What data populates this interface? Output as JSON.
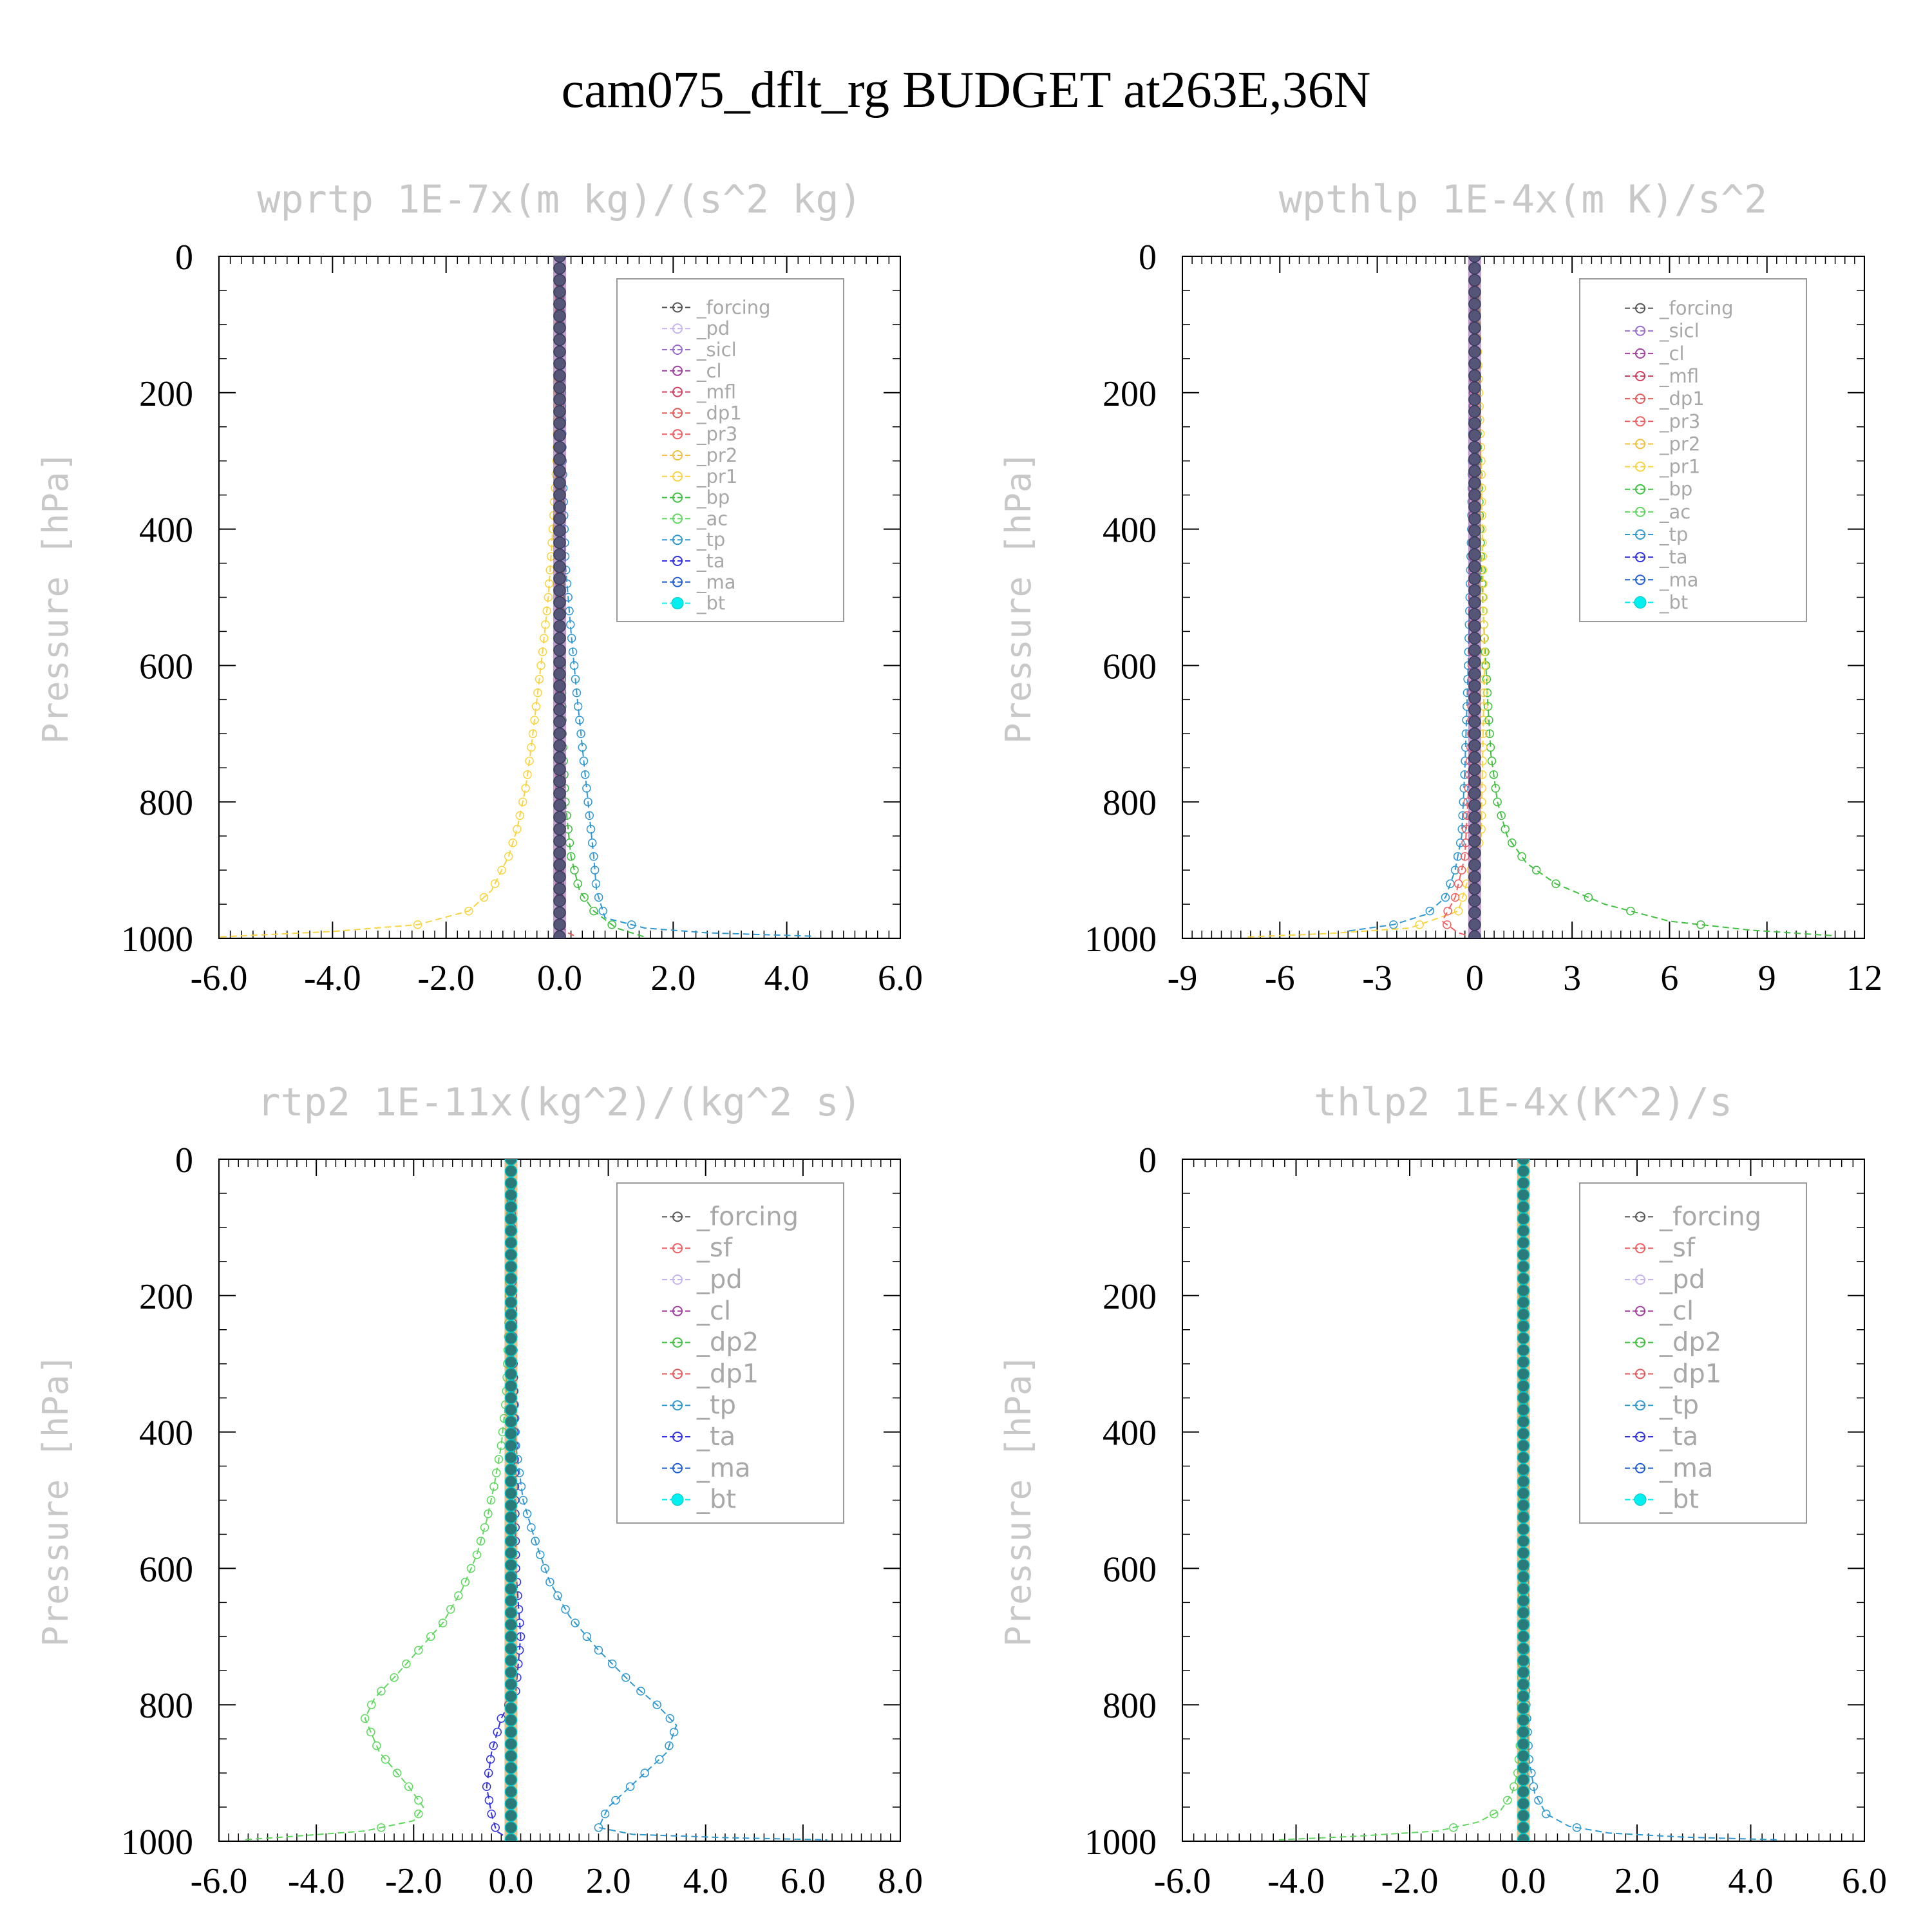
{
  "title": "cam075_dflt_rg  BUDGET at263E,36N",
  "colors": {
    "forcing": "#555555",
    "pd": "#c8b4f0",
    "sicl": "#9a6cd0",
    "cl": "#a040a0",
    "mfl": "#d04060",
    "dp1": "#e05a5a",
    "pr3": "#f06060",
    "pr2": "#f0c040",
    "pr1": "#f8d440",
    "bp": "#40c040",
    "ac": "#60d860",
    "tp": "#3098d0",
    "ta": "#3030e0",
    "ma": "#2060d0",
    "bt": "#00f0f0"
  },
  "chart_data": [
    {
      "type": "line",
      "title": "wprtp  1E-7x(m kg)/(s^2 kg)",
      "ylabel": "Pressure [hPa]",
      "ylim": [
        1000,
        0
      ],
      "yticks": [
        "0",
        "200",
        "400",
        "600",
        "800",
        "1000"
      ],
      "xlim": [
        -6,
        6
      ],
      "xticks": [
        "-6.0",
        "-4.0",
        "-2.0",
        "0.0",
        "2.0",
        "4.0",
        "6.0"
      ],
      "legend_position": "top-right",
      "legend": [
        "_forcing",
        "_pd",
        "_sicl",
        "_cl",
        "_mfl",
        "_dp1",
        "_pr3",
        "_pr2",
        "_pr1",
        "_bp",
        "_ac",
        "_tp",
        "_ta",
        "_ma",
        "_bt"
      ],
      "series": [
        {
          "name": "_pr1",
          "color_key": "pr1",
          "x": [
            0,
            -0.05,
            -0.12,
            -0.2,
            -0.3,
            -0.4,
            -0.5,
            -0.6,
            -0.75,
            -0.9,
            -1.2,
            -1.6,
            -2.5,
            -4.0,
            -6.0
          ],
          "y": [
            0,
            300,
            400,
            500,
            580,
            650,
            720,
            780,
            840,
            880,
            930,
            960,
            980,
            990,
            998
          ]
        },
        {
          "name": "_tp",
          "color_key": "tp",
          "x": [
            0,
            0.05,
            0.1,
            0.2,
            0.3,
            0.4,
            0.5,
            0.6,
            0.65,
            0.8,
            1.5,
            2.6,
            4.5
          ],
          "y": [
            0,
            300,
            450,
            550,
            640,
            720,
            800,
            880,
            930,
            970,
            985,
            992,
            997
          ]
        },
        {
          "name": "_bp",
          "color_key": "bp",
          "x": [
            0,
            0.02,
            0.05,
            0.1,
            0.2,
            0.35,
            0.6,
            1.0,
            1.5
          ],
          "y": [
            0,
            500,
            700,
            800,
            880,
            930,
            960,
            985,
            998
          ]
        },
        {
          "name": "_dp1",
          "color_key": "dp1",
          "x": [
            0,
            0.0,
            0.15,
            0.3
          ],
          "y": [
            0,
            980,
            992,
            998
          ]
        },
        {
          "name": "_forcing",
          "color_key": "forcing",
          "x": [
            0,
            0
          ],
          "y": [
            0,
            1000
          ]
        }
      ]
    },
    {
      "type": "line",
      "title": "wpthlp  1E-4x(m K)/s^2",
      "ylabel": "Pressure [hPa]",
      "ylim": [
        1000,
        0
      ],
      "yticks": [
        "0",
        "200",
        "400",
        "600",
        "800",
        "1000"
      ],
      "xlim": [
        -9,
        12
      ],
      "xticks": [
        "-9",
        "-6",
        "-3",
        "0",
        "3",
        "6",
        "9",
        "12"
      ],
      "legend_position": "top-right",
      "legend": [
        "_forcing",
        "_sicl",
        "_cl",
        "_mfl",
        "_dp1",
        "_pr3",
        "_pr2",
        "_pr1",
        "_bp",
        "_ac",
        "_tp",
        "_ta",
        "_ma",
        "_bt"
      ],
      "series": [
        {
          "name": "_bp",
          "color_key": "bp",
          "x": [
            0,
            0.1,
            0.2,
            0.3,
            0.4,
            0.5,
            0.7,
            1.0,
            1.6,
            2.5,
            4.0,
            6.0,
            8.5,
            11.0
          ],
          "y": [
            0,
            300,
            450,
            560,
            650,
            730,
            800,
            850,
            890,
            920,
            950,
            975,
            988,
            996
          ]
        },
        {
          "name": "_tp",
          "color_key": "tp",
          "x": [
            0,
            -0.1,
            -0.2,
            -0.3,
            -0.4,
            -0.6,
            -0.9,
            -1.5,
            -2.5,
            -4.0
          ],
          "y": [
            0,
            400,
            600,
            750,
            850,
            900,
            940,
            965,
            980,
            990
          ]
        },
        {
          "name": "_pr1",
          "color_key": "pr1",
          "x": [
            0,
            0.2,
            0.3,
            0.2,
            -0.5,
            -2.0,
            -4.5,
            -7.0
          ],
          "y": [
            0,
            300,
            600,
            850,
            960,
            985,
            993,
            998
          ]
        },
        {
          "name": "_pr3",
          "color_key": "pr3",
          "x": [
            0,
            -0.1,
            -0.3,
            -0.6,
            -1.0,
            -0.5,
            0.0
          ],
          "y": [
            0,
            700,
            880,
            940,
            975,
            992,
            999
          ]
        },
        {
          "name": "_forcing",
          "color_key": "forcing",
          "x": [
            0,
            0
          ],
          "y": [
            0,
            1000
          ]
        }
      ]
    },
    {
      "type": "line",
      "title": "rtp2  1E-11x(kg^2)/(kg^2 s)",
      "ylabel": "Pressure [hPa]",
      "ylim": [
        1000,
        0
      ],
      "yticks": [
        "0",
        "200",
        "400",
        "600",
        "800",
        "1000"
      ],
      "xlim": [
        -6,
        8
      ],
      "xticks": [
        "-6.0",
        "-4.0",
        "-2.0",
        "0.0",
        "2.0",
        "4.0",
        "6.0",
        "8.0"
      ],
      "legend_position": "top-right",
      "legend": [
        "_forcing",
        "_sf",
        "_pd",
        "_cl",
        "_dp2",
        "_dp1",
        "_tp",
        "_ta",
        "_ma",
        "_bt"
      ],
      "series": [
        {
          "name": "_dp1",
          "color_key": "ac",
          "x": [
            0,
            -0.05,
            -0.1,
            -0.2,
            -0.35,
            -0.5,
            -0.7,
            -1.0,
            -1.4,
            -1.9,
            -2.4,
            -2.8,
            -3.0,
            -2.7,
            -2.1,
            -1.8,
            -2.0,
            -3.0,
            -4.5,
            -5.5
          ],
          "y": [
            0,
            250,
            350,
            420,
            480,
            530,
            580,
            630,
            680,
            720,
            760,
            790,
            820,
            870,
            920,
            950,
            970,
            985,
            993,
            998
          ]
        },
        {
          "name": "_tp",
          "color_key": "tp",
          "x": [
            0,
            0.05,
            0.1,
            0.25,
            0.5,
            0.8,
            1.2,
            1.8,
            2.5,
            3.0,
            3.4,
            3.2,
            2.6,
            2.0,
            1.8,
            2.5,
            4.5,
            6.5
          ],
          "y": [
            0,
            300,
            420,
            500,
            560,
            620,
            670,
            720,
            770,
            800,
            830,
            870,
            910,
            950,
            980,
            990,
            995,
            998
          ]
        },
        {
          "name": "_ta",
          "color_key": "ta",
          "x": [
            0,
            0.1,
            0.2,
            0.1,
            -0.2,
            -0.4,
            -0.5,
            -0.4,
            -0.3,
            0.0
          ],
          "y": [
            0,
            600,
            700,
            780,
            820,
            870,
            920,
            960,
            985,
            999
          ]
        },
        {
          "name": "_bt",
          "color_key": "bt",
          "x": [
            0,
            0
          ],
          "y": [
            0,
            1000
          ]
        }
      ]
    },
    {
      "type": "line",
      "title": "thlp2  1E-4x(K^2)/s",
      "ylabel": "Pressure [hPa]",
      "ylim": [
        1000,
        0
      ],
      "yticks": [
        "0",
        "200",
        "400",
        "600",
        "800",
        "1000"
      ],
      "xlim": [
        -6,
        6
      ],
      "xticks": [
        "-6.0",
        "-4.0",
        "-2.0",
        "0.0",
        "2.0",
        "4.0",
        "6.0"
      ],
      "legend_position": "top-right",
      "legend": [
        "_forcing",
        "_sf",
        "_pd",
        "_cl",
        "_dp2",
        "_dp1",
        "_tp",
        "_ta",
        "_ma",
        "_bt"
      ],
      "series": [
        {
          "name": "_tp",
          "color_key": "tp",
          "x": [
            0,
            0.02,
            0.05,
            0.1,
            0.2,
            0.4,
            0.8,
            1.5,
            2.8,
            4.5
          ],
          "y": [
            0,
            600,
            800,
            880,
            930,
            960,
            978,
            988,
            994,
            998
          ]
        },
        {
          "name": "_dp1",
          "color_key": "ac",
          "x": [
            0,
            -0.02,
            -0.05,
            -0.1,
            -0.2,
            -0.4,
            -0.8,
            -1.5,
            -3.0,
            -4.3
          ],
          "y": [
            0,
            700,
            850,
            900,
            930,
            955,
            972,
            985,
            993,
            998
          ]
        },
        {
          "name": "_bt",
          "color_key": "bt",
          "x": [
            0,
            0
          ],
          "y": [
            0,
            1000
          ]
        }
      ]
    }
  ]
}
